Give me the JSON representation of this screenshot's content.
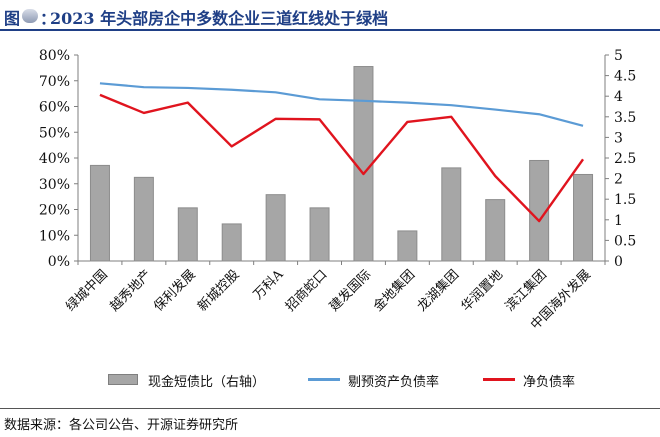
{
  "header": {
    "fig_label": "图",
    "colon": "：",
    "title": "2023 年头部房企中多数企业三道红线处于绿档"
  },
  "chart_data": {
    "type": "bar+line",
    "categories": [
      "绿城中国",
      "越秀地产",
      "保利发展",
      "新城控股",
      "万科A",
      "招商蛇口",
      "建发国际",
      "金地集团",
      "龙湖集团",
      "华润置地",
      "滨江集团",
      "中国海外发展"
    ],
    "left_axis": {
      "ticks": [
        "0%",
        "10%",
        "20%",
        "30%",
        "40%",
        "50%",
        "60%",
        "70%",
        "80%"
      ],
      "min": 0,
      "max": 0.8
    },
    "right_axis": {
      "ticks": [
        "0",
        "0.5",
        "1",
        "1.5",
        "2",
        "2.5",
        "3",
        "3.5",
        "4",
        "4.5",
        "5"
      ],
      "min": 0,
      "max": 5
    },
    "series": [
      {
        "name": "现金短债比（右轴）",
        "kind": "bar",
        "axis": "right",
        "color": "#a6a6a6",
        "values": [
          2.32,
          2.03,
          1.29,
          0.9,
          1.61,
          1.29,
          4.72,
          0.73,
          2.26,
          1.49,
          2.44,
          2.1
        ]
      },
      {
        "name": "剔预资产负债率",
        "kind": "line",
        "axis": "left",
        "color": "#5b9bd5",
        "values": [
          0.69,
          0.675,
          0.672,
          0.665,
          0.655,
          0.628,
          0.622,
          0.615,
          0.605,
          0.588,
          0.57,
          0.525
        ]
      },
      {
        "name": "净负债率",
        "kind": "line",
        "axis": "left",
        "color": "#e0141e",
        "values": [
          0.645,
          0.575,
          0.615,
          0.445,
          0.552,
          0.55,
          0.338,
          0.54,
          0.56,
          0.33,
          0.155,
          0.395
        ]
      }
    ]
  },
  "legend": {
    "bar_label": "现金短债比（右轴）",
    "blue_label": "剔预资产负债率",
    "red_label": "净负债率"
  },
  "source": "数据来源：各公司公告、开源证券研究所"
}
